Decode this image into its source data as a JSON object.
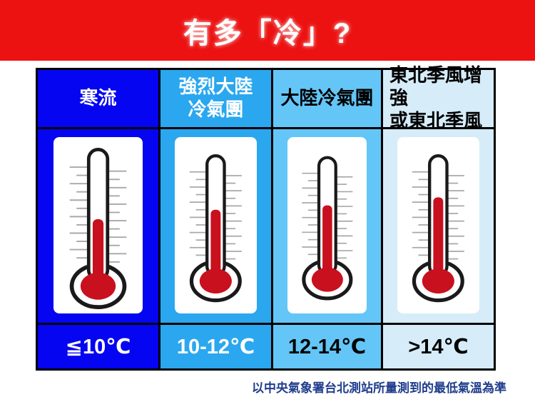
{
  "title": "有多「冷」?",
  "banner_color": "#EC1212",
  "footer_note": "以中央氣象署台北測站所量測到的最低氣溫為準",
  "footer_color": "#1F3D8C",
  "table": {
    "columns": [
      {
        "label_lines": [
          "寒流"
        ],
        "temp": "≦10℃",
        "bg": "#0505F2",
        "text_color": "#FFFFFF",
        "header_align": "center",
        "mercury_level": 0.5
      },
      {
        "label_lines": [
          "強烈大陸",
          "冷氣團"
        ],
        "temp": "10-12℃",
        "bg": "#2BA7EF",
        "text_color": "#FFFFFF",
        "header_align": "center",
        "mercury_level": 0.6
      },
      {
        "label_lines": [
          "大陸冷氣團"
        ],
        "temp": "12-14℃",
        "bg": "#64C6F6",
        "text_color": "#000000",
        "header_align": "center",
        "mercury_level": 0.65
      },
      {
        "label_lines": [
          "東北季風增強",
          "或東北季風"
        ],
        "temp": ">14℃",
        "bg": "#D6ECF9",
        "text_color": "#000000",
        "header_align": "left",
        "mercury_level": 0.72
      }
    ]
  },
  "thermometer": {
    "icon": "thermometer-icon",
    "mercury_color": "#C8101E",
    "outline_color": "#1A1A1A",
    "tick_color": "#A8A8A8",
    "card_color": "#FFFFFF"
  }
}
